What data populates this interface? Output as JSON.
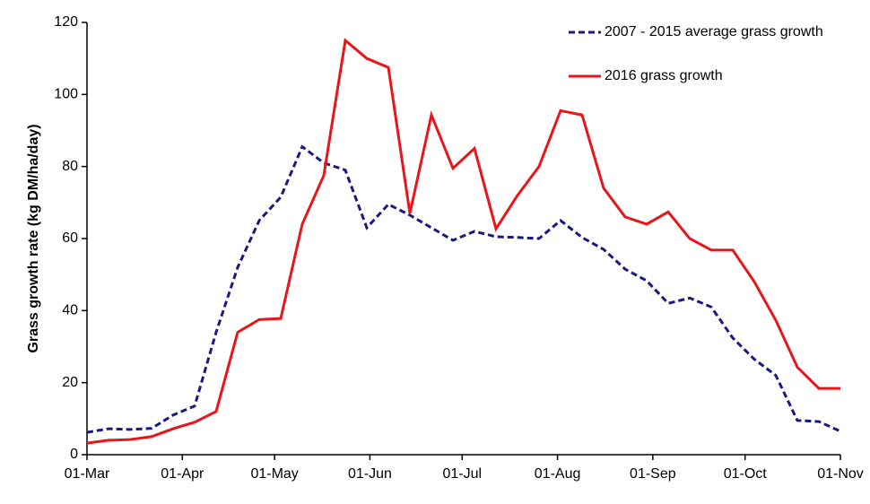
{
  "chart_data": {
    "type": "line",
    "ylabel": "Grass growth rate (kg DM/ha/day)",
    "x": [
      0,
      7,
      14,
      21,
      28,
      35,
      42,
      49,
      56,
      63,
      70,
      77,
      84,
      91,
      98,
      105,
      112,
      119,
      126,
      133,
      140,
      147,
      154,
      161,
      168,
      175,
      182,
      189,
      196,
      203,
      210,
      217,
      224,
      231,
      238,
      245
    ],
    "xlim": [
      0,
      245
    ],
    "xticks": [
      {
        "value": 0,
        "label": "01-Mar"
      },
      {
        "value": 31,
        "label": "01-Apr"
      },
      {
        "value": 61,
        "label": "01-May"
      },
      {
        "value": 92,
        "label": "01-Jun"
      },
      {
        "value": 122,
        "label": "01-Jul"
      },
      {
        "value": 153,
        "label": "01-Aug"
      },
      {
        "value": 184,
        "label": "01-Sep"
      },
      {
        "value": 214,
        "label": "01-Oct"
      },
      {
        "value": 245,
        "label": "01-Nov"
      }
    ],
    "ylim": [
      0,
      120
    ],
    "yticks": [
      0,
      20,
      40,
      60,
      80,
      100,
      120
    ],
    "legend": "upper right",
    "series": [
      {
        "name": "2007 - 2015 average grass growth",
        "color": "#1a1a80",
        "dashed": true,
        "values": [
          6.2,
          7.2,
          7.0,
          7.3,
          11,
          13.5,
          34,
          52,
          65,
          71.5,
          85.5,
          81,
          79,
          63,
          69.5,
          66.5,
          63,
          59.5,
          62,
          60.5,
          60.3,
          60,
          65,
          60.3,
          57,
          51.5,
          48.3,
          42,
          43.5,
          41,
          32.4,
          26.5,
          22,
          9.5,
          9.2,
          6.5
        ]
      },
      {
        "name": "2016 grass growth",
        "color": "#e8161b",
        "dashed": false,
        "values": [
          3.2,
          4,
          4.2,
          5,
          7.2,
          9,
          12,
          34,
          37.5,
          37.8,
          64,
          77.5,
          115,
          110,
          107.5,
          67,
          94.3,
          79.5,
          85,
          62.7,
          72,
          80,
          95.5,
          94.3,
          74,
          66,
          64,
          67.4,
          60,
          56.8,
          56.8,
          48,
          37.3,
          24.3,
          18.4,
          18.4
        ]
      }
    ]
  }
}
